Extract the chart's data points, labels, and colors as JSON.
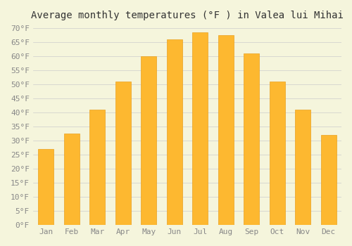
{
  "title": "Average monthly temperatures (°F ) in Valea lui Mihai",
  "months": [
    "Jan",
    "Feb",
    "Mar",
    "Apr",
    "May",
    "Jun",
    "Jul",
    "Aug",
    "Sep",
    "Oct",
    "Nov",
    "Dec"
  ],
  "values": [
    27,
    32.5,
    41,
    51,
    60,
    66,
    68.5,
    67.5,
    61,
    51,
    41,
    32
  ],
  "bar_color": "#FDB830",
  "bar_edge_color": "#E8A020",
  "background_color": "#F5F5DC",
  "grid_color": "#CCCCCC",
  "ylim": [
    0,
    70
  ],
  "ytick_step": 5,
  "title_fontsize": 10,
  "tick_fontsize": 8,
  "font_family": "monospace"
}
